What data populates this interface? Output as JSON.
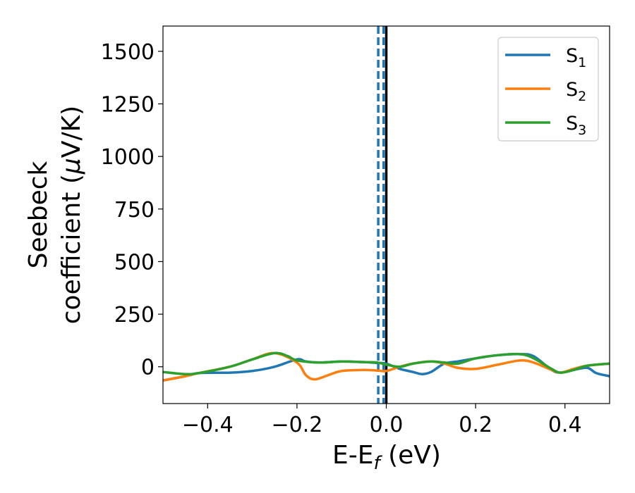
{
  "chart_data": {
    "type": "line",
    "xlabel": {
      "main": "E-E",
      "sub": "f",
      "rest": " (eV)"
    },
    "ylabel": {
      "line1": "Seebeck",
      "line2": "coefficient  (",
      "mu": "μ",
      "line2_rest": "V/K)"
    },
    "xlim": [
      -0.5,
      0.5
    ],
    "ylim": [
      -175,
      1620
    ],
    "x_ticks": [
      -0.4,
      -0.2,
      0.0,
      0.2,
      0.4
    ],
    "x_tick_labels": [
      "−0.4",
      "−0.2",
      "0.0",
      "0.2",
      "0.4"
    ],
    "y_ticks": [
      0,
      250,
      500,
      750,
      1000,
      1250,
      1500
    ],
    "y_tick_labels": [
      "0",
      "250",
      "500",
      "750",
      "1000",
      "1250",
      "1500"
    ],
    "grid": false,
    "legend_position": "top-right",
    "vlines": [
      {
        "x": -0.018,
        "style": "dashed",
        "color": "#1f77b4"
      },
      {
        "x": -0.006,
        "style": "dashed",
        "color": "#1f77b4"
      },
      {
        "x": 0.0,
        "style": "solid",
        "color": "#000000"
      }
    ],
    "series": [
      {
        "name": "S",
        "sub": "1",
        "color": "#1f77b4",
        "x": [
          -0.5,
          -0.45,
          -0.42,
          -0.35,
          -0.3,
          -0.25,
          -0.2,
          -0.18,
          -0.15,
          -0.1,
          -0.05,
          -0.02,
          0.0,
          0.03,
          0.06,
          0.08,
          0.1,
          0.13,
          0.16,
          0.2,
          0.25,
          0.3,
          0.33,
          0.37,
          0.39,
          0.42,
          0.45,
          0.47,
          0.5
        ],
        "y": [
          -65,
          -45,
          -30,
          -28,
          -20,
          0,
          35,
          25,
          20,
          25,
          22,
          18,
          15,
          -10,
          -25,
          -35,
          -25,
          15,
          25,
          40,
          55,
          60,
          50,
          -15,
          -28,
          -15,
          -5,
          -30,
          -45
        ]
      },
      {
        "name": "S",
        "sub": "2",
        "color": "#ff7f0e",
        "x": [
          -0.5,
          -0.45,
          -0.42,
          -0.35,
          -0.3,
          -0.25,
          -0.2,
          -0.18,
          -0.16,
          -0.13,
          -0.1,
          -0.05,
          -0.02,
          0.0,
          0.03,
          0.06,
          0.1,
          0.13,
          0.16,
          0.2,
          0.25,
          0.3,
          0.33,
          0.37,
          0.39,
          0.42,
          0.45,
          0.5
        ],
        "y": [
          -65,
          -45,
          -30,
          0,
          35,
          65,
          20,
          -40,
          -60,
          -40,
          -20,
          -15,
          -18,
          -20,
          0,
          15,
          25,
          15,
          -5,
          -10,
          10,
          30,
          20,
          -15,
          -28,
          -10,
          5,
          15
        ]
      },
      {
        "name": "S",
        "sub": "3",
        "color": "#2ca02c",
        "x": [
          -0.5,
          -0.45,
          -0.42,
          -0.35,
          -0.3,
          -0.25,
          -0.22,
          -0.2,
          -0.15,
          -0.1,
          -0.05,
          -0.02,
          0.0,
          0.03,
          0.06,
          0.1,
          0.13,
          0.16,
          0.2,
          0.25,
          0.3,
          0.33,
          0.37,
          0.39,
          0.42,
          0.45,
          0.5
        ],
        "y": [
          -25,
          -35,
          -30,
          0,
          35,
          65,
          50,
          30,
          20,
          25,
          22,
          20,
          10,
          0,
          15,
          25,
          20,
          15,
          40,
          55,
          60,
          40,
          -10,
          -28,
          -15,
          5,
          15
        ]
      }
    ]
  }
}
